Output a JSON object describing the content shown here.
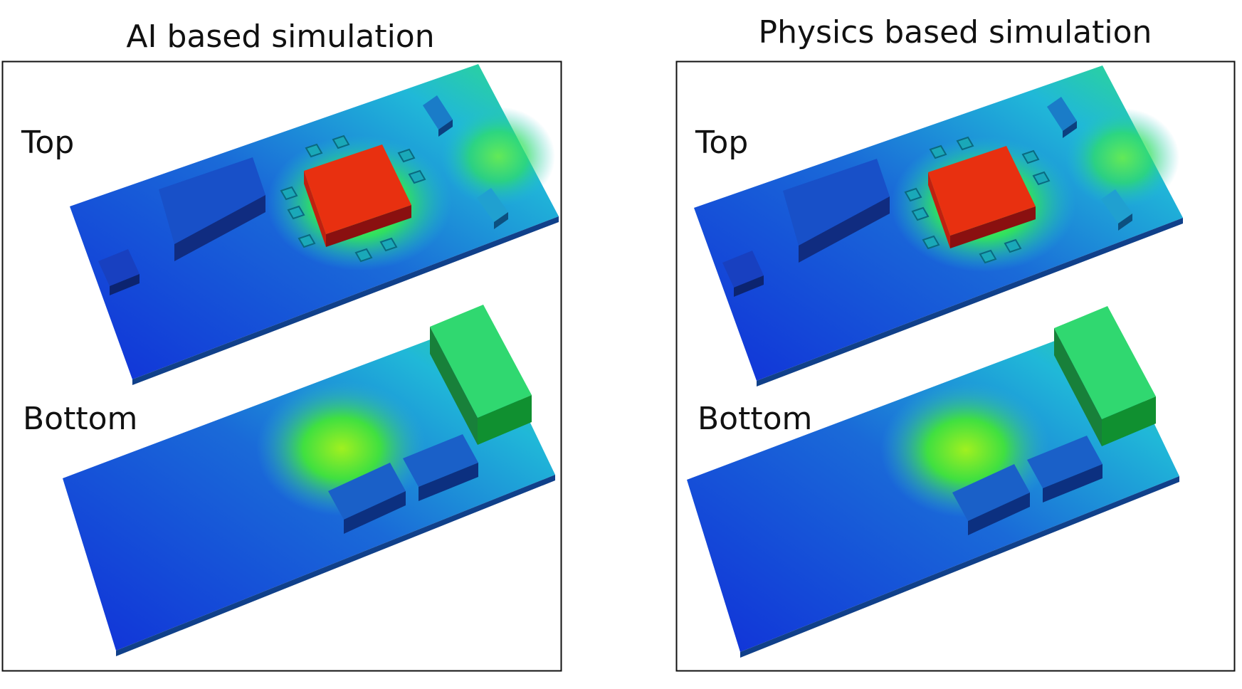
{
  "panels": [
    {
      "title": "AI based simulation",
      "top_label": "Top",
      "bottom_label": "Bottom"
    },
    {
      "title": "Physics based simulation",
      "top_label": "Top",
      "bottom_label": "Bottom"
    }
  ]
}
